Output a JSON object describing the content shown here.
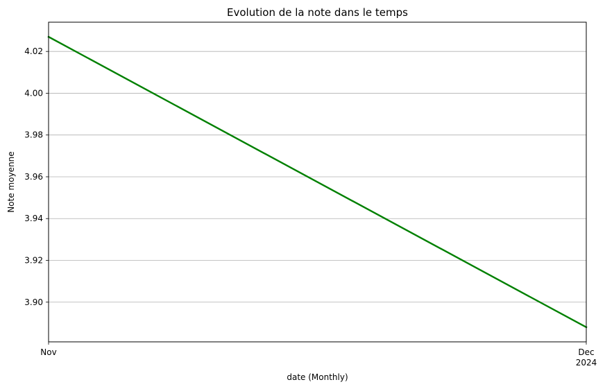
{
  "chart_data": {
    "type": "line",
    "title": "Evolution de la note dans le temps",
    "xlabel": "date (Monthly)",
    "ylabel": "Note moyenne",
    "x": [
      "2024-11",
      "2024-12"
    ],
    "x_tick_labels": [
      {
        "month": "Nov",
        "year": ""
      },
      {
        "month": "Dec",
        "year": "2024"
      }
    ],
    "series": [
      {
        "values": [
          4.027,
          3.888
        ],
        "color": "#008000"
      }
    ],
    "y_ticks": [
      3.9,
      3.92,
      3.94,
      3.96,
      3.98,
      4.0,
      4.02
    ],
    "y_tick_labels": [
      "3.90",
      "3.92",
      "3.94",
      "3.96",
      "3.98",
      "4.00",
      "4.02"
    ],
    "ylim": [
      3.881,
      4.034
    ],
    "grid": "y-axis",
    "legend": "none"
  }
}
